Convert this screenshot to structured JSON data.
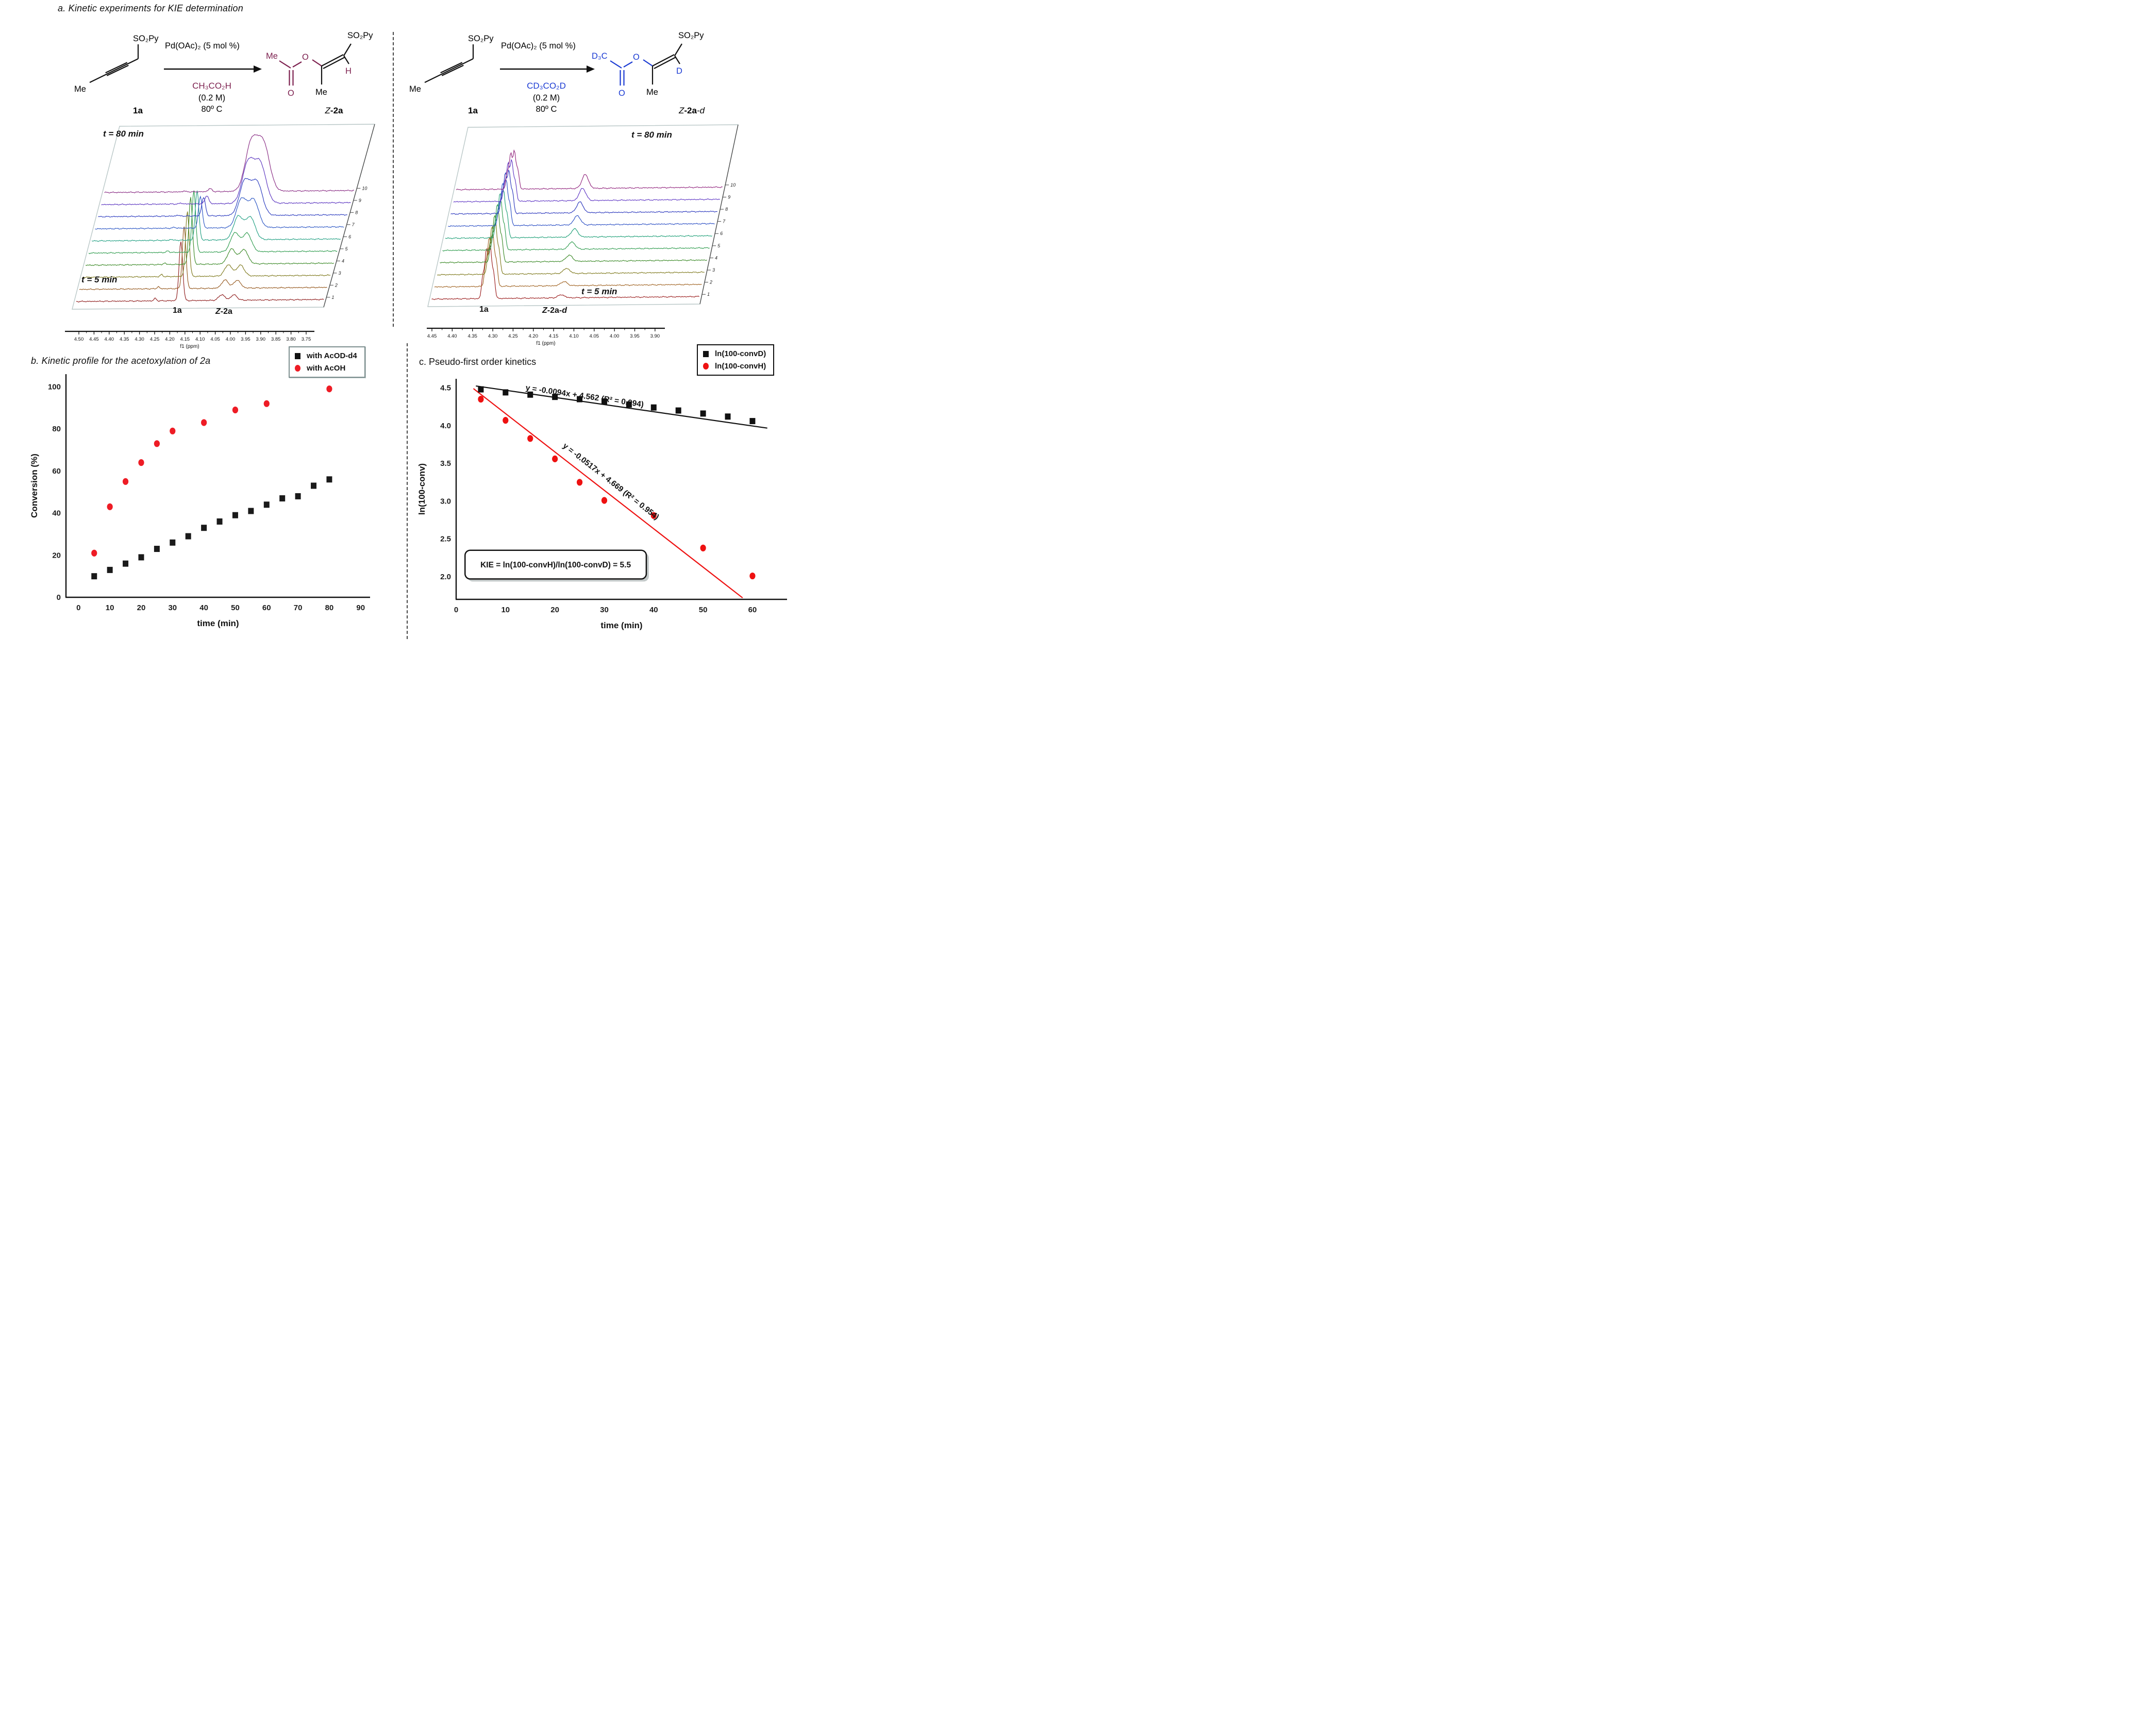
{
  "panel_a": {
    "title": "a. Kinetic experiments for KIE determination",
    "left_scheme": {
      "accent_color": "#7c1f4e",
      "reactant": {
        "me": "Me",
        "so2py": "SO₂Py",
        "id": "1a"
      },
      "conditions": {
        "catalyst": "Pd(OAc)₂ (5 mol %)",
        "acid": "CH₃CO₂H",
        "concentration": "(0.2 M)",
        "temperature": "80º C"
      },
      "product": {
        "acetyl_me": "Me",
        "ester_o": "O",
        "carbonyl_o": "O",
        "vinyl_h": "H",
        "me": "Me",
        "so2py": "SO₂Py",
        "id_italic": "Z",
        "id_bold": "-2a"
      }
    },
    "right_scheme": {
      "accent_color": "#1b3bd3",
      "reactant": {
        "me": "Me",
        "so2py": "SO₂Py",
        "id": "1a"
      },
      "conditions": {
        "catalyst": "Pd(OAc)₂ (5 mol %)",
        "acid": "CD₃CO₂D",
        "concentration": "(0.2 M)",
        "temperature": "80º C"
      },
      "product": {
        "acetyl_d3c": "D₃C",
        "ester_o": "O",
        "carbonyl_o": "O",
        "vinyl_d": "D",
        "me": "Me",
        "so2py": "SO₂Py",
        "id_italic": "Z",
        "id_bold": "-2a",
        "id_suffix": "-d"
      }
    },
    "nmr_left": {
      "t_top": "t = 80 min",
      "t_bottom": "t = 5 min",
      "peak_label_substrate": "1a",
      "peak_label_product_italic": "Z",
      "peak_label_product_bold": "-2a",
      "xlabel": "f1 (ppm)",
      "ticks": [
        "4.50",
        "4.45",
        "4.40",
        "4.35",
        "4.30",
        "4.25",
        "4.20",
        "4.15",
        "4.10",
        "4.05",
        "4.00",
        "3.95",
        "3.90",
        "3.85",
        "3.80",
        "3.75"
      ],
      "trace_numbers": [
        "1",
        "2",
        "3",
        "4",
        "5",
        "6",
        "7",
        "8",
        "9",
        "10"
      ],
      "colors": [
        "#8f1d1d",
        "#96591f",
        "#7f7a1e",
        "#3c8a28",
        "#2f9c4e",
        "#22a083",
        "#2b56c4",
        "#2b3bbf",
        "#5b35c0",
        "#8a2d85"
      ],
      "substrate_peak": {
        "ppm": 4.17,
        "sigma": 0.006,
        "heights": [
          115,
          120,
          126,
          130,
          120,
          96,
          62,
          36,
          16,
          6
        ]
      },
      "product_peak": {
        "ppm_doublet": [
          4.035,
          3.995
        ],
        "sigma": 0.01,
        "heights": [
          11,
          16,
          22,
          29,
          37,
          45,
          55,
          66,
          78,
          92
        ]
      },
      "impurity_peak": {
        "ppm": 4.255,
        "sigma": 0.004,
        "heights": [
          5,
          4,
          4,
          3,
          3,
          2,
          2,
          2,
          2,
          2
        ]
      }
    },
    "nmr_right": {
      "t_top": "t = 80 min",
      "t_bottom": "t = 5 min",
      "peak_label_substrate": "1a",
      "peak_label_product_italic": "Z",
      "peak_label_product_bold": "-2a",
      "peak_label_product_suffix": "-d",
      "xlabel": "f1 (ppm)",
      "ticks": [
        "4.45",
        "4.40",
        "4.35",
        "4.30",
        "4.25",
        "4.20",
        "4.15",
        "4.10",
        "4.05",
        "4.00",
        "3.95",
        "3.90"
      ],
      "trace_numbers": [
        "1",
        "2",
        "3",
        "4",
        "5",
        "6",
        "7",
        "8",
        "9",
        "10"
      ],
      "colors": [
        "#9b1e1e",
        "#a06322",
        "#7f7a1e",
        "#3c8a28",
        "#2f9c4e",
        "#1fa078",
        "#2b4fc4",
        "#2b37bd",
        "#6038c5",
        "#93277f"
      ],
      "substrate_peak": {
        "ppm": 4.315,
        "sigma": 0.0035,
        "offsets": [
          -0.013,
          -0.0045,
          0.0045,
          0.013
        ],
        "amps": [
          0.5,
          1,
          0.92,
          0.45
        ],
        "heights": [
          100,
          98,
          96,
          94,
          92,
          89,
          85,
          81,
          77,
          72
        ]
      },
      "product_peak": {
        "ppm": 4.135,
        "sigma": 0.008,
        "heights": [
          6,
          8,
          10,
          12,
          14,
          16,
          18,
          21,
          24,
          27
        ]
      }
    }
  },
  "panel_b": {
    "title": "b. Kinetic profile for the acetoxylation of 2a"
  },
  "panel_c": {
    "title": "c. Pseudo-first order kinetics",
    "kie_text": "KIE = ln(100-convH)/ln(100-convD) = 5.5"
  },
  "chart_data": [
    {
      "id": "conversion_profile",
      "type": "scatter",
      "title": "b. Kinetic profile for the acetoxylation of 2a",
      "xlabel": "time (min)",
      "ylabel": "Conversion (%)",
      "xlim": [
        -4,
        93
      ],
      "ylim": [
        0,
        106
      ],
      "xticks": [
        0,
        10,
        20,
        30,
        40,
        50,
        60,
        70,
        80,
        90
      ],
      "yticks": [
        0,
        20,
        40,
        60,
        80,
        100
      ],
      "grid": false,
      "legend_position": "top-right",
      "series": [
        {
          "name": "with AcOD-d4",
          "marker": "square",
          "color": "#1a1a1a",
          "x": [
            5,
            10,
            15,
            20,
            25,
            30,
            35,
            40,
            45,
            50,
            55,
            60,
            65,
            70,
            75,
            80
          ],
          "y": [
            10,
            13,
            16,
            19,
            23,
            26,
            29,
            33,
            36,
            39,
            41,
            44,
            47,
            48,
            53,
            56
          ]
        },
        {
          "name": "with AcOH",
          "marker": "circle",
          "color": "#ee1c25",
          "x": [
            5,
            10,
            15,
            20,
            25,
            30,
            40,
            50,
            60,
            80
          ],
          "y": [
            21,
            43,
            55,
            64,
            73,
            79,
            83,
            89,
            92,
            99
          ]
        }
      ]
    },
    {
      "id": "pseudo_first_order",
      "type": "scatter",
      "title": "c. Pseudo-first order kinetics",
      "xlabel": "time (min)",
      "ylabel": "ln(100-conv)",
      "xlim": [
        0,
        67
      ],
      "ylim": [
        1.7,
        4.62
      ],
      "xticks": [
        0,
        10,
        20,
        30,
        40,
        50,
        60
      ],
      "yticks": [
        2.0,
        2.5,
        3.0,
        3.5,
        4.0,
        4.5
      ],
      "ytick_labels": [
        "2.0",
        "2.5",
        "3.0",
        "3.5",
        "4.0",
        "4.5"
      ],
      "grid": false,
      "legend_position": "top-right",
      "series": [
        {
          "name": "ln(100-convD)",
          "marker": "square",
          "color": "#111111",
          "x": [
            5,
            10,
            15,
            20,
            25,
            30,
            35,
            40,
            45,
            50,
            55,
            60
          ],
          "y": [
            4.48,
            4.44,
            4.41,
            4.38,
            4.35,
            4.32,
            4.28,
            4.24,
            4.2,
            4.16,
            4.12,
            4.06
          ]
        },
        {
          "name": "ln(100-convH)",
          "marker": "circle",
          "color": "#ee1111",
          "x": [
            5,
            10,
            15,
            20,
            25,
            30,
            40,
            50,
            60
          ],
          "y": [
            4.35,
            4.07,
            3.83,
            3.56,
            3.25,
            3.01,
            2.81,
            2.38,
            2.01
          ]
        }
      ],
      "fit_lines": [
        {
          "series": "ln(100-convD)",
          "equation": "y = -0.0094x + 4.562 (R² = 0.994)",
          "slope": -0.0094,
          "intercept": 4.562,
          "r2": 0.994,
          "color": "#111111",
          "x1": 4,
          "y1": 4.525,
          "x2": 63,
          "y2": 3.967
        },
        {
          "series": "ln(100-convH)",
          "equation": "y = -0.0517x + 4.669 (R² = 0.954)",
          "slope": -0.0517,
          "intercept": 4.669,
          "r2": 0.954,
          "color": "#ee1111",
          "x1": 3.5,
          "y1": 4.49,
          "x2": 58,
          "y2": 1.72
        }
      ],
      "annotations": [
        {
          "text": "y = -0.0094x + 4.562 (R² = 0.994)",
          "x": 14,
          "y": 4.47,
          "line": 0
        },
        {
          "text": "y = -0.0517x + 4.669 (R² = 0.954)",
          "x": 21.5,
          "y": 3.72,
          "line": 1
        }
      ],
      "kie_box": {
        "text": "KIE = ln(100-convH)/ln(100-convD) = 5.5",
        "x1": 1.8,
        "y1": 2.35,
        "x2": 38.5,
        "y2": 1.97
      }
    }
  ]
}
